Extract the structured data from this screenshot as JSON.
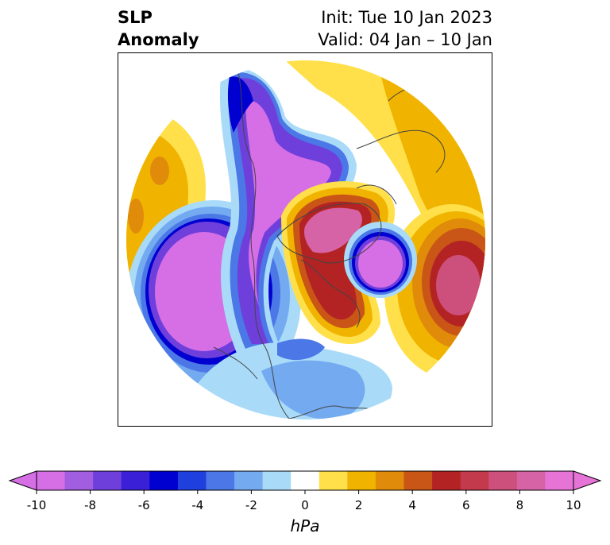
{
  "title": {
    "left_line1": "SLP",
    "left_line2": "Anomaly",
    "right_line1": "Init: Tue 10 Jan 2023",
    "right_line2": "Valid: 04 Jan – 10 Jan"
  },
  "colorbar": {
    "unit": "hPa",
    "ticks": [
      "-10",
      "-8",
      "-6",
      "-4",
      "-2",
      "0",
      "2",
      "4",
      "6",
      "8",
      "10"
    ],
    "colors": [
      "#d66ee6",
      "#a25ee0",
      "#6f3fdc",
      "#3a20d6",
      "#0000d0",
      "#2040dd",
      "#4b78e6",
      "#73aaf0",
      "#a9dbf9",
      "#ffffff",
      "#ffe04a",
      "#f0b400",
      "#e08b0a",
      "#c95517",
      "#b42323",
      "#c43a4d",
      "#cc4f7c",
      "#d663a6",
      "#e673d6"
    ],
    "under_color": "#d66ee6",
    "over_color": "#e673d6"
  },
  "map": {
    "projection": "north-polar-stereographic",
    "variable": "sea-level-pressure-anomaly"
  }
}
